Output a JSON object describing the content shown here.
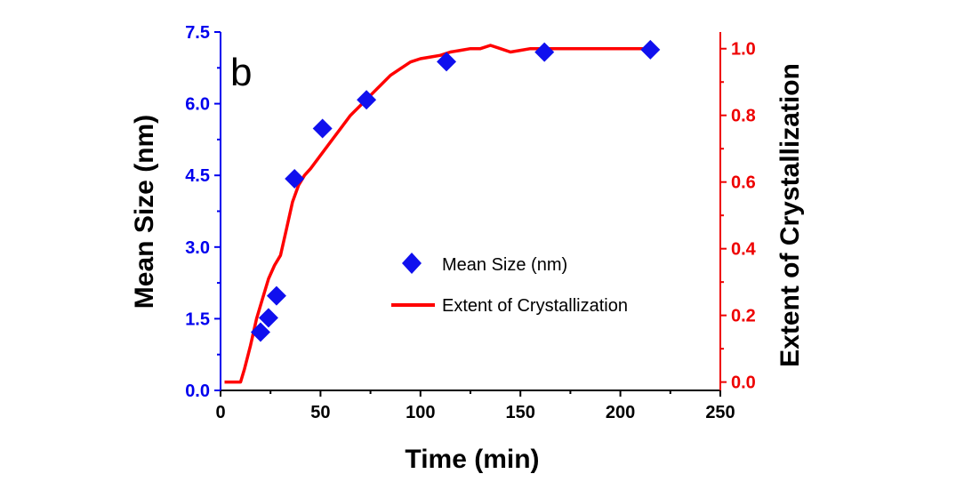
{
  "chart_data": {
    "type": "scatter+line",
    "panel_label": "b",
    "xlabel": "Time (min)",
    "ylabel_left": "Mean Size (nm)",
    "ylabel_right": "Extent of Crystallization",
    "xlim": [
      0,
      250
    ],
    "ylim_left": [
      0,
      7.5
    ],
    "ylim_right": [
      -0.025,
      1.05
    ],
    "x_ticks": [
      "0",
      "50",
      "100",
      "150",
      "200",
      "250"
    ],
    "y_left_ticks": [
      "0.0",
      "1.5",
      "3.0",
      "4.5",
      "6.0",
      "7.5"
    ],
    "y_right_ticks": [
      "0.0",
      "0.2",
      "0.4",
      "0.6",
      "0.8",
      "1.0"
    ],
    "x_tick_values": [
      0,
      50,
      100,
      150,
      200,
      250
    ],
    "y_left_tick_values": [
      0,
      1.5,
      3.0,
      4.5,
      6.0,
      7.5
    ],
    "y_right_tick_values": [
      0,
      0.2,
      0.4,
      0.6,
      0.8,
      1.0
    ],
    "colors": {
      "left_axis": "#0000ee",
      "right_axis": "#ee0000",
      "scatter": "#1010ee",
      "line": "#ff0000"
    },
    "series": [
      {
        "name": "Mean Size (nm)",
        "kind": "scatter",
        "axis": "left",
        "marker": "diamond",
        "x": [
          20,
          24,
          28,
          37,
          51,
          73,
          113,
          162,
          215
        ],
        "y": [
          1.22,
          1.52,
          1.98,
          4.43,
          5.48,
          6.08,
          6.88,
          7.08,
          7.13
        ]
      },
      {
        "name": "Extent of Crystallization",
        "kind": "line",
        "axis": "right",
        "x": [
          2,
          5,
          10,
          12,
          15,
          18,
          21,
          24,
          27,
          30,
          33,
          36,
          39,
          42,
          45,
          50,
          55,
          60,
          65,
          70,
          75,
          80,
          85,
          90,
          95,
          100,
          105,
          110,
          115,
          120,
          125,
          130,
          135,
          140,
          145,
          150,
          155,
          160,
          165,
          170,
          180,
          190,
          200,
          210,
          215
        ],
        "y": [
          0.0,
          0.0,
          0.0,
          0.04,
          0.11,
          0.19,
          0.25,
          0.31,
          0.35,
          0.38,
          0.46,
          0.54,
          0.59,
          0.62,
          0.64,
          0.68,
          0.72,
          0.76,
          0.8,
          0.83,
          0.86,
          0.89,
          0.92,
          0.94,
          0.96,
          0.97,
          0.975,
          0.98,
          0.99,
          0.995,
          1.0,
          1.0,
          1.01,
          1.0,
          0.99,
          0.995,
          1.0,
          1.0,
          1.0,
          1.0,
          1.0,
          1.0,
          1.0,
          1.0,
          1.0
        ]
      }
    ],
    "legend": {
      "position": "center-right"
    }
  }
}
